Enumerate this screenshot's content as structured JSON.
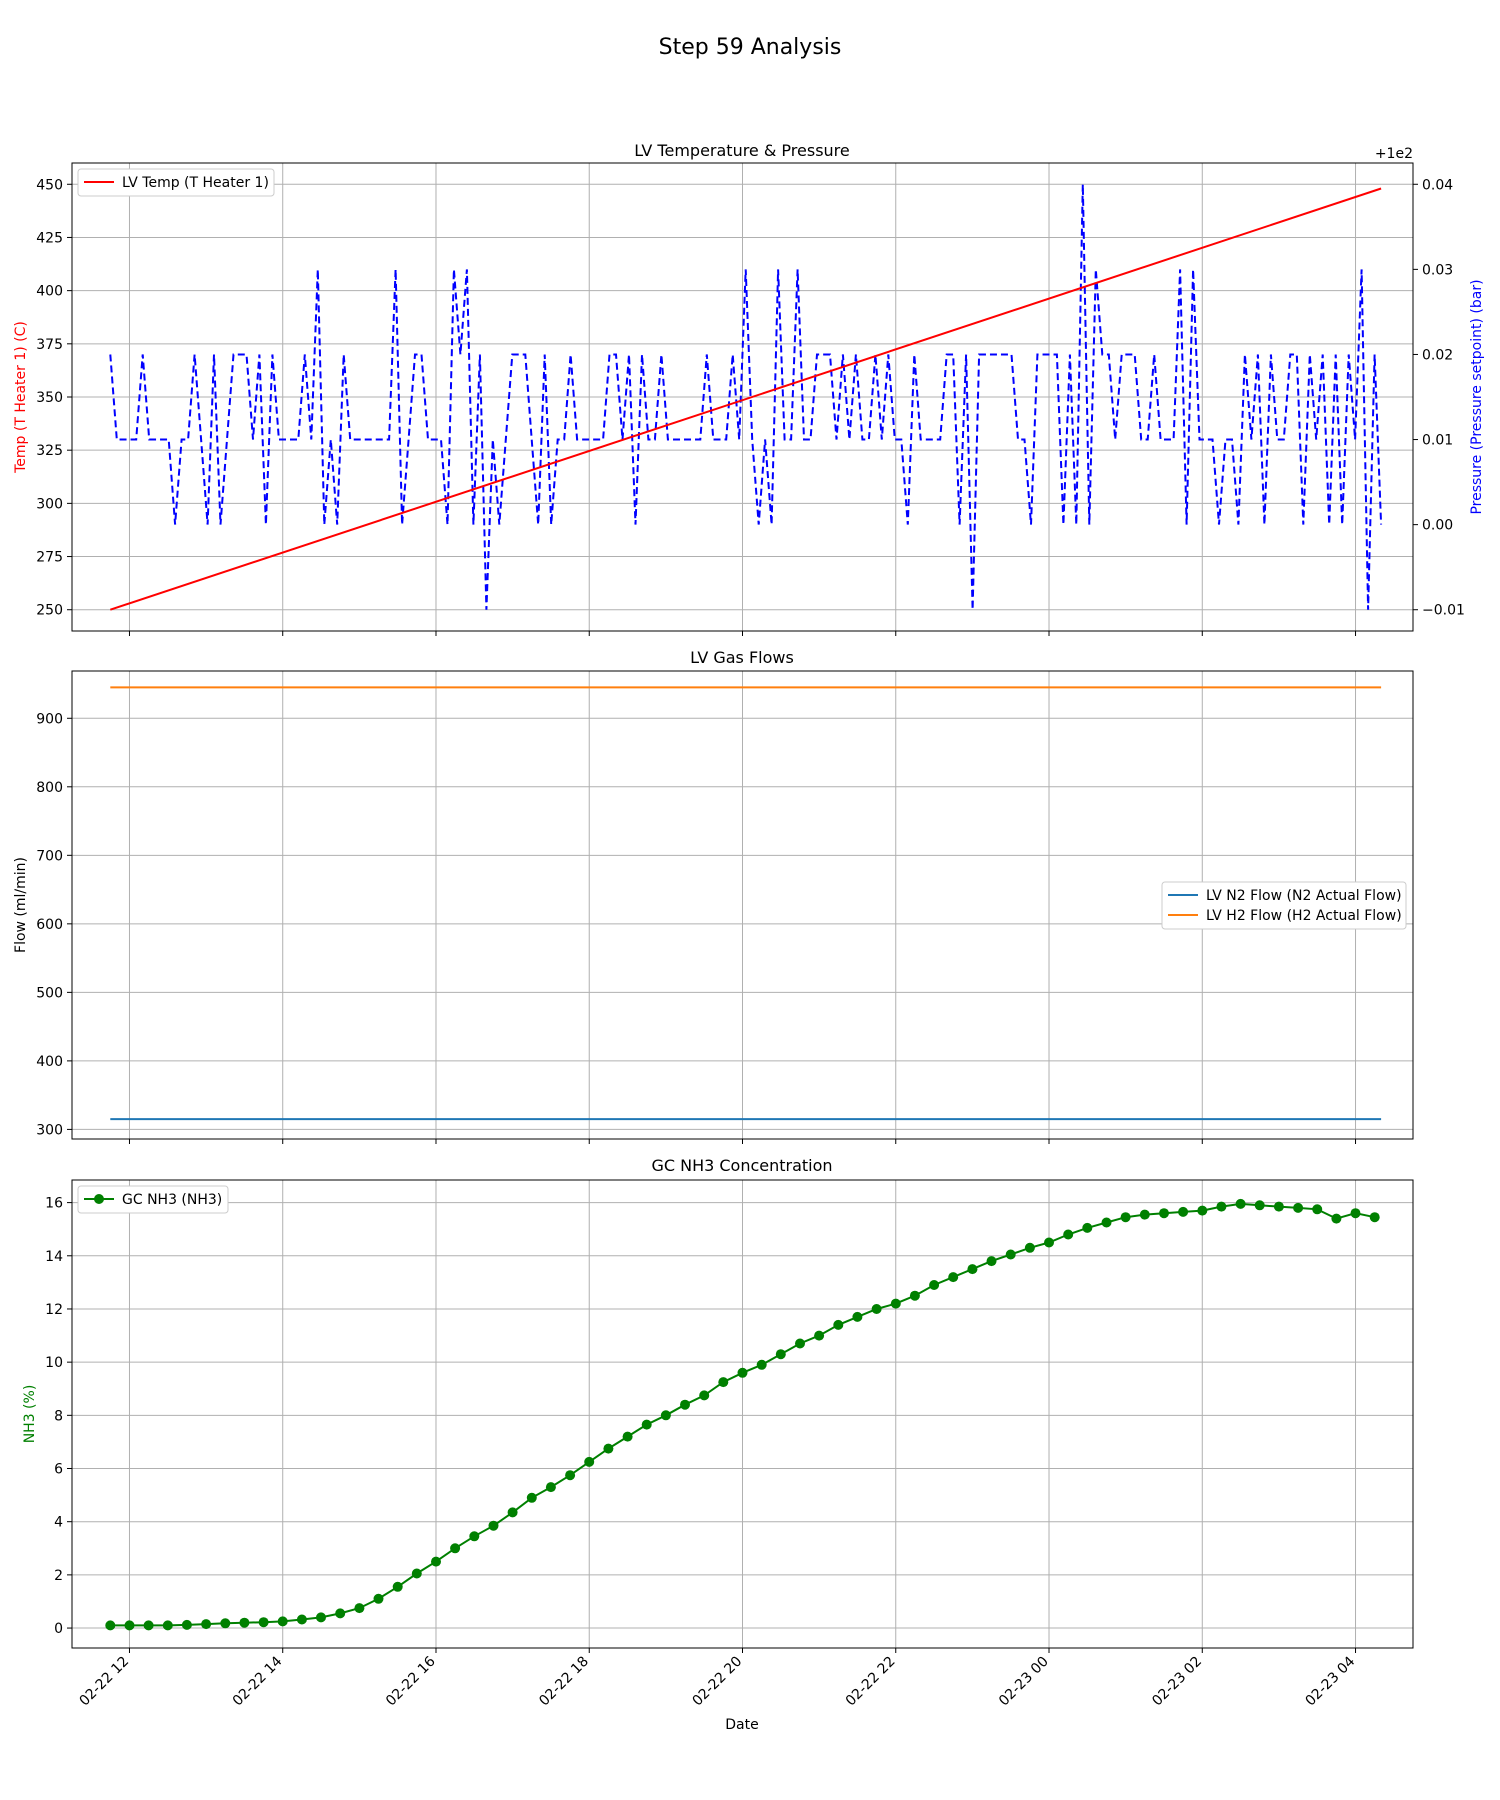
{
  "figure": {
    "title": "Step 59 Analysis"
  },
  "chart_data": [
    {
      "type": "line",
      "title": "LV Temperature & Pressure",
      "xlabel": "",
      "ylabel": "Temp (T Heater 1) (C)",
      "ylabel_right": "Pressure (Pressure setpoint) (bar)",
      "offset_label_right": "+1e2",
      "x_range": [
        "2022-02-22 11:15",
        "2022-02-23 04:45"
      ],
      "ylim": [
        240,
        460
      ],
      "ylim_right": [
        99.9875,
        100.0425
      ],
      "yticks": [
        250,
        275,
        300,
        325,
        350,
        375,
        400,
        425,
        450
      ],
      "yticks_right": [
        99.99,
        100.0,
        100.01,
        100.02,
        100.03,
        100.04
      ],
      "yticks_right_labels": [
        "−0.01",
        "0.00",
        "0.01",
        "0.02",
        "0.03",
        "0.04"
      ],
      "grid": true,
      "legend": "upper-left",
      "colors": {
        "temp": "#ff0000",
        "pressure": "#0000ff",
        "ylabel": "#ff0000",
        "ylabel_right": "#0000ff"
      },
      "series": [
        {
          "name": "LV Temp (T Heater 1)",
          "axis": "left",
          "style": "solid",
          "x": [
            "2022-02-22 11:45",
            "2022-02-23 04:20"
          ],
          "values": [
            250,
            448
          ]
        },
        {
          "name": "",
          "axis": "right",
          "style": "dashed",
          "x_start": "2022-02-22 11:45",
          "x_end": "2022-02-23 04:20",
          "values": [
            100.02,
            100.01,
            100.01,
            100.01,
            100.01,
            100.02,
            100.01,
            100.01,
            100.01,
            100.01,
            100.0,
            100.01,
            100.01,
            100.02,
            100.01,
            100.0,
            100.02,
            100.0,
            100.01,
            100.02,
            100.02,
            100.02,
            100.01,
            100.02,
            100.0,
            100.02,
            100.01,
            100.01,
            100.01,
            100.01,
            100.02,
            100.01,
            100.03,
            100.0,
            100.01,
            100.0,
            100.02,
            100.01,
            100.01,
            100.01,
            100.01,
            100.01,
            100.01,
            100.01,
            100.03,
            100.0,
            100.01,
            100.02,
            100.02,
            100.01,
            100.01,
            100.01,
            100.0,
            100.03,
            100.02,
            100.03,
            100.0,
            100.02,
            99.99,
            100.01,
            100.0,
            100.01,
            100.02,
            100.02,
            100.02,
            100.01,
            100.0,
            100.02,
            100.0,
            100.01,
            100.01,
            100.02,
            100.01,
            100.01,
            100.01,
            100.01,
            100.01,
            100.02,
            100.02,
            100.01,
            100.02,
            100.0,
            100.02,
            100.01,
            100.01,
            100.02,
            100.01,
            100.01,
            100.01,
            100.01,
            100.01,
            100.01,
            100.02,
            100.01,
            100.01,
            100.01,
            100.02,
            100.01,
            100.03,
            100.01,
            100.0,
            100.01,
            100.0,
            100.03,
            100.01,
            100.01,
            100.03,
            100.01,
            100.01,
            100.02,
            100.02,
            100.02,
            100.01,
            100.02,
            100.01,
            100.02,
            100.01,
            100.01,
            100.02,
            100.01,
            100.02,
            100.01,
            100.01,
            100.0,
            100.02,
            100.01,
            100.01,
            100.01,
            100.01,
            100.02,
            100.02,
            100.0,
            100.02,
            99.99,
            100.02,
            100.02,
            100.02,
            100.02,
            100.02,
            100.02,
            100.01,
            100.01,
            100.0,
            100.02,
            100.02,
            100.02,
            100.02,
            100.0,
            100.02,
            100.0,
            100.04,
            100.0,
            100.03,
            100.02,
            100.02,
            100.01,
            100.02,
            100.02,
            100.02,
            100.01,
            100.01,
            100.02,
            100.01,
            100.01,
            100.01,
            100.03,
            100.0,
            100.03,
            100.01,
            100.01,
            100.01,
            100.0,
            100.01,
            100.01,
            100.0,
            100.02,
            100.01,
            100.02,
            100.0,
            100.02,
            100.01,
            100.01,
            100.02,
            100.02,
            100.0,
            100.02,
            100.01,
            100.02,
            100.0,
            100.02,
            100.0,
            100.02,
            100.01,
            100.03,
            99.99,
            100.02,
            100.0
          ]
        }
      ]
    },
    {
      "type": "line",
      "title": "LV Gas Flows",
      "xlabel": "",
      "ylabel": "Flow (ml/min)",
      "x_range": [
        "2022-02-22 11:15",
        "2022-02-23 04:45"
      ],
      "ylim": [
        286,
        969
      ],
      "yticks": [
        300,
        400,
        500,
        600,
        700,
        800,
        900
      ],
      "grid": true,
      "legend": "center-right",
      "series": [
        {
          "name": "LV N2 Flow (N2 Actual Flow)",
          "color": "#1f77b4",
          "x": [
            "2022-02-22 11:45",
            "2022-02-23 04:20"
          ],
          "values": [
            315,
            315
          ]
        },
        {
          "name": "LV H2 Flow (H2 Actual Flow)",
          "color": "#ff7f0e",
          "x": [
            "2022-02-22 11:45",
            "2022-02-23 04:20"
          ],
          "values": [
            945,
            945
          ]
        }
      ]
    },
    {
      "type": "scatter",
      "title": "GC NH3 Concentration",
      "xlabel": "Date",
      "ylabel": "NH3 (%)",
      "x_range": [
        "2022-02-22 11:15",
        "2022-02-23 04:45"
      ],
      "ylim": [
        -0.75,
        16.85
      ],
      "yticks": [
        0,
        2,
        4,
        6,
        8,
        10,
        12,
        14,
        16
      ],
      "xticks": [
        "2022-02-22 12:00",
        "2022-02-22 14:00",
        "2022-02-22 16:00",
        "2022-02-22 18:00",
        "2022-02-22 20:00",
        "2022-02-22 22:00",
        "2022-02-23 00:00",
        "2022-02-23 02:00",
        "2022-02-23 04:00"
      ],
      "xtick_labels": [
        "02-22 12",
        "02-22 14",
        "02-22 16",
        "02-22 18",
        "02-22 20",
        "02-22 22",
        "02-23 00",
        "02-23 02",
        "02-23 04"
      ],
      "grid": true,
      "legend": "upper-left",
      "colors": {
        "marker": "#008000",
        "ylabel": "#008000"
      },
      "series": [
        {
          "name": "GC NH3 (NH3)",
          "color": "#008000",
          "x": [
            "2022-02-22 11:45",
            "2022-02-22 12:00",
            "2022-02-22 12:15",
            "2022-02-22 12:30",
            "2022-02-22 12:45",
            "2022-02-22 13:00",
            "2022-02-22 13:15",
            "2022-02-22 13:30",
            "2022-02-22 13:45",
            "2022-02-22 14:00",
            "2022-02-22 14:15",
            "2022-02-22 14:30",
            "2022-02-22 14:45",
            "2022-02-22 15:00",
            "2022-02-22 15:15",
            "2022-02-22 15:30",
            "2022-02-22 15:45",
            "2022-02-22 16:00",
            "2022-02-22 16:15",
            "2022-02-22 16:30",
            "2022-02-22 16:45",
            "2022-02-22 17:00",
            "2022-02-22 17:15",
            "2022-02-22 17:30",
            "2022-02-22 17:45",
            "2022-02-22 18:00",
            "2022-02-22 18:15",
            "2022-02-22 18:30",
            "2022-02-22 18:45",
            "2022-02-22 19:00",
            "2022-02-22 19:15",
            "2022-02-22 19:30",
            "2022-02-22 19:45",
            "2022-02-22 20:00",
            "2022-02-22 20:15",
            "2022-02-22 20:30",
            "2022-02-22 20:45",
            "2022-02-22 21:00",
            "2022-02-22 21:15",
            "2022-02-22 21:30",
            "2022-02-22 21:45",
            "2022-02-22 22:00",
            "2022-02-22 22:15",
            "2022-02-22 22:30",
            "2022-02-22 22:45",
            "2022-02-22 23:00",
            "2022-02-22 23:15",
            "2022-02-22 23:30",
            "2022-02-22 23:45",
            "2022-02-23 00:00",
            "2022-02-23 00:15",
            "2022-02-23 00:30",
            "2022-02-23 00:45",
            "2022-02-23 01:00",
            "2022-02-23 01:15",
            "2022-02-23 01:30",
            "2022-02-23 01:45",
            "2022-02-23 02:00",
            "2022-02-23 02:15",
            "2022-02-23 02:30",
            "2022-02-23 02:45",
            "2022-02-23 03:00",
            "2022-02-23 03:15",
            "2022-02-23 03:30",
            "2022-02-23 03:45",
            "2022-02-23 04:00",
            "2022-02-23 04:15"
          ],
          "values": [
            0.1,
            0.1,
            0.1,
            0.1,
            0.12,
            0.15,
            0.18,
            0.2,
            0.22,
            0.25,
            0.32,
            0.4,
            0.55,
            0.75,
            1.1,
            1.55,
            2.05,
            2.5,
            3.0,
            3.45,
            3.85,
            4.35,
            4.9,
            5.3,
            5.75,
            6.25,
            6.75,
            7.2,
            7.65,
            8.0,
            8.4,
            8.75,
            9.25,
            9.6,
            9.9,
            10.3,
            10.7,
            11.0,
            11.4,
            11.7,
            12.0,
            12.2,
            12.5,
            12.9,
            13.2,
            13.5,
            13.8,
            14.05,
            14.3,
            14.5,
            14.8,
            15.05,
            15.25,
            15.45,
            15.55,
            15.6,
            15.65,
            15.7,
            15.85,
            15.95,
            15.9,
            15.85,
            15.8,
            15.75,
            15.4,
            15.6,
            15.45
          ]
        }
      ]
    }
  ]
}
